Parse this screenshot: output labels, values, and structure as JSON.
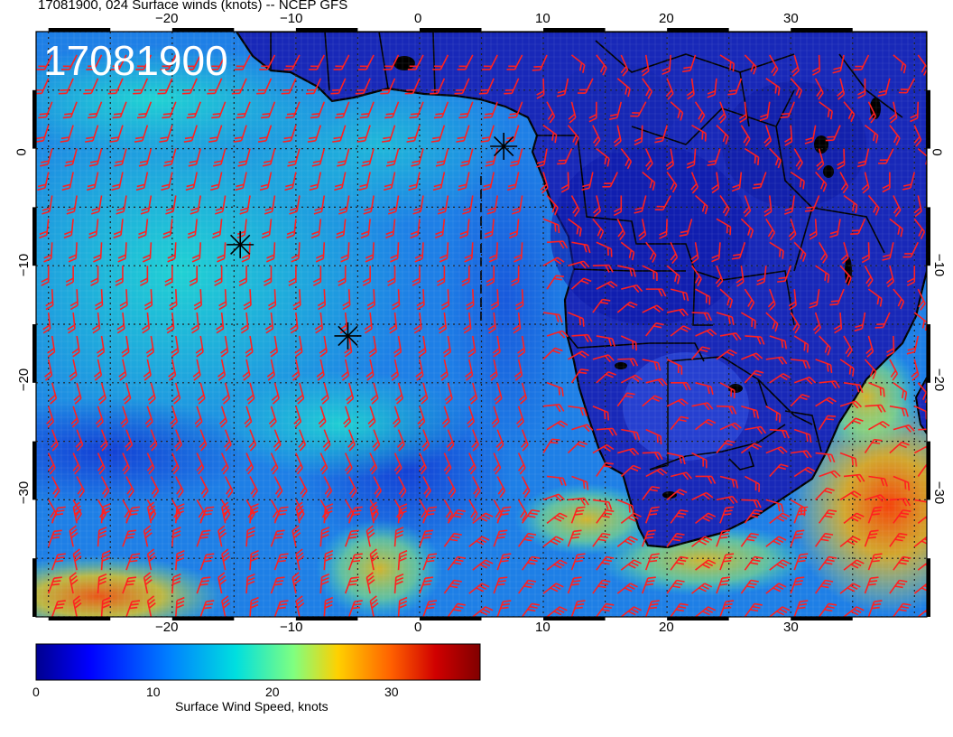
{
  "title": "17081900, 024 Surface winds (knots) -- NCEP GFS",
  "stamp": "17081900",
  "lon_ticks": [
    "−20",
    "−10",
    "0",
    "10",
    "20",
    "30"
  ],
  "lon_values": [
    -20,
    -10,
    0,
    10,
    20,
    30
  ],
  "lat_ticks": [
    "0",
    "−10",
    "−20",
    "−30"
  ],
  "lat_values": [
    0,
    -10,
    -20,
    -30
  ],
  "extent": {
    "lon": [
      -31,
      41
    ],
    "lat": [
      -40,
      10
    ]
  },
  "colorbar": {
    "title": "Surface Wind Speed, knots",
    "ticks": [
      "0",
      "10",
      "20",
      "30"
    ],
    "tick_values": [
      0,
      10,
      20,
      30
    ],
    "range": [
      0,
      36
    ],
    "colors": [
      "#00008f",
      "#0000ff",
      "#0080ff",
      "#00dfdf",
      "#80ff80",
      "#ffd000",
      "#ff6000",
      "#d00000",
      "#800000"
    ]
  },
  "markers": [
    {
      "name": "star-marker",
      "lon": 6.8,
      "lat": 0.2
    },
    {
      "name": "star-marker",
      "lon": -14.5,
      "lat": -8.2
    },
    {
      "name": "star-marker",
      "lon": -5.8,
      "lat": -16.0
    }
  ],
  "colors": {
    "barb": "#ff2020",
    "coast": "#000000",
    "marker": "#000000",
    "grid": "#222222"
  }
}
